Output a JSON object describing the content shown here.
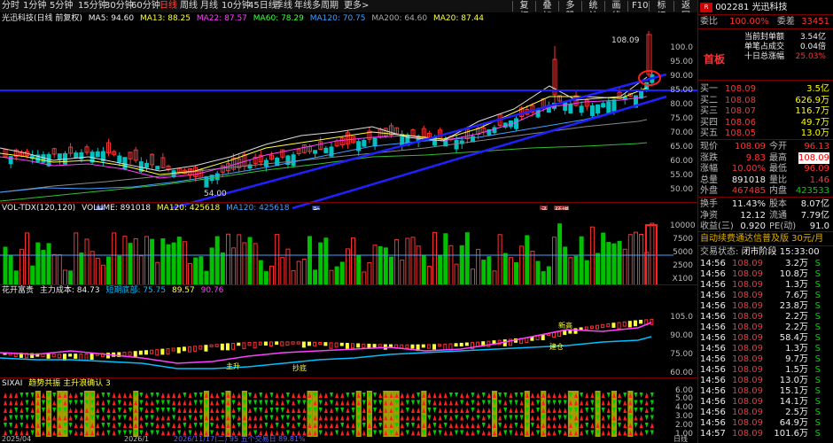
{
  "periods": [
    "分时",
    "1分钟",
    "5分钟",
    "15分钟",
    "30分钟",
    "60分钟",
    "日线",
    "周线",
    "月线",
    "10分钟",
    "45日线",
    "季线",
    "年线",
    "多周期",
    "更多>"
  ],
  "active_period": "日线",
  "toolbar": [
    "复权",
    "叠加",
    "多股",
    "统计",
    "画线",
    "F10",
    "标记",
    "返回"
  ],
  "main_title": {
    "name": "光迅科技(日线 前复权)",
    "ma5": "MA5: 94.60",
    "ma13": "MA13: 88.25",
    "ma22": "MA22: 87.57",
    "ma60": "MA60: 78.29",
    "ma120": "MA120: 70.75",
    "ma200": "MA200: 64.60",
    "ma20": "MA20: 87.44"
  },
  "price_axis": [
    "100.0",
    "95.00",
    "90.00",
    "85.00",
    "80.00",
    "75.00",
    "70.00",
    "65.00",
    "60.00",
    "55.00",
    "50.00"
  ],
  "price_high_label": "108.09",
  "price_low_label": "54.00",
  "markers": {
    "m1": "财",
    "m2": "融",
    "m3": "承",
    "m4": "预增"
  },
  "vol_title": {
    "name": "VOL-TDX(120,120)",
    "volume": "VOLUME: 891018",
    "ma120": "MA120: 425618",
    "ma120b": "MA120: 425618"
  },
  "vol_axis": [
    "10000",
    "7500",
    "5000",
    "2500",
    "X100"
  ],
  "ind2_title": {
    "name": "花开富贵",
    "cost": "主力成本: 84.73",
    "short": "短期底部: 75.75",
    "val": "89.57",
    "val2": "90.76"
  },
  "ind2_axis": [
    "105.0",
    "90.00",
    "75.00",
    "60.00"
  ],
  "ind2_labels": {
    "a": "新高",
    "b": "主升",
    "c": "抄底",
    "d": "建仓"
  },
  "ind3_title": {
    "name": "SIXAI",
    "sub": "趋势共振 主升浪确认 3"
  },
  "ind3_axis": [
    "6.00",
    "5.00",
    "4.00",
    "3.00",
    "2.00",
    "1.00"
  ],
  "bottom_dates": {
    "d1": "2025/04",
    "d2": "2026/1",
    "d3": "2026/11/17(二)  95 五个交易日 89.81%",
    "d4": "日线"
  },
  "stock": {
    "code": "002281",
    "name": "光迅科技",
    "weibi_label": "委比",
    "weibi": "100.00%",
    "weicha_label": "委差",
    "weicha": "33451",
    "dangqian_label": "当前封单额",
    "dangqian": "3.54亿",
    "danbi_label": "单笔占成交",
    "danbi": "0.04倍",
    "shiri_label": "十日总涨幅",
    "shiri": "25.03%",
    "shouban": "首板"
  },
  "orderbook": {
    "buy": [
      {
        "label": "买一",
        "price": "108.09",
        "vol": "3.5亿"
      },
      {
        "label": "买二",
        "price": "108.08",
        "vol": "626.9万"
      },
      {
        "label": "买三",
        "price": "108.07",
        "vol": "116.7万"
      },
      {
        "label": "买四",
        "price": "108.06",
        "vol": "49.7万"
      },
      {
        "label": "买五",
        "price": "108.05",
        "vol": "13.0万"
      }
    ]
  },
  "quote": [
    {
      "l1": "现价",
      "v1": "108.09",
      "c1": "red",
      "l2": "今开",
      "v2": "96.13",
      "c2": "red"
    },
    {
      "l1": "涨跌",
      "v1": "9.83",
      "c1": "red",
      "l2": "最高",
      "v2": "108.09",
      "c2": "red"
    },
    {
      "l1": "涨幅",
      "v1": "10.00%",
      "c1": "red",
      "l2": "最低",
      "v2": "96.09",
      "c2": "red"
    },
    {
      "l1": "总量",
      "v1": "891018",
      "c1": "white",
      "l2": "量比",
      "v2": "1.46",
      "c2": "red"
    },
    {
      "l1": "外盘",
      "v1": "467485",
      "c1": "red",
      "l2": "内盘",
      "v2": "423533",
      "c2": "green"
    }
  ],
  "quote2": [
    {
      "l1": "换手",
      "v1": "11.43%",
      "l2": "股本",
      "v2": "8.07亿"
    },
    {
      "l1": "净资",
      "v1": "12.12",
      "l2": "流通",
      "v2": "7.79亿"
    },
    {
      "l1": "收益(三)",
      "v1": "0.920",
      "l2": "PE(动)",
      "v2": "91.0"
    }
  ],
  "ad_text": "自动续费通达信普及版 30元/月",
  "trade_status_label": "交易状态:",
  "trade_status": "闭市阶段 15:33:00",
  "ticks": [
    {
      "t": "14:56",
      "p": "108.09",
      "v": "3.2万",
      "d": "S"
    },
    {
      "t": "14:56",
      "p": "108.09",
      "v": "10.8万",
      "d": "S"
    },
    {
      "t": "14:56",
      "p": "108.09",
      "v": "1.3万",
      "d": "S"
    },
    {
      "t": "14:56",
      "p": "108.09",
      "v": "7.6万",
      "d": "S"
    },
    {
      "t": "14:56",
      "p": "108.09",
      "v": "23.8万",
      "d": "S"
    },
    {
      "t": "14:56",
      "p": "108.09",
      "v": "2.2万",
      "d": "S"
    },
    {
      "t": "14:56",
      "p": "108.09",
      "v": "2.2万",
      "d": "S"
    },
    {
      "t": "14:56",
      "p": "108.09",
      "v": "58.4万",
      "d": "S"
    },
    {
      "t": "14:56",
      "p": "108.09",
      "v": "1.3万",
      "d": "S"
    },
    {
      "t": "14:56",
      "p": "108.09",
      "v": "9.7万",
      "d": "S"
    },
    {
      "t": "14:56",
      "p": "108.09",
      "v": "1.5万",
      "d": "S"
    },
    {
      "t": "14:56",
      "p": "108.09",
      "v": "13.0万",
      "d": "S"
    },
    {
      "t": "14:56",
      "p": "108.09",
      "v": "15.1万",
      "d": "S"
    },
    {
      "t": "14:56",
      "p": "108.09",
      "v": "14.1万",
      "d": "S"
    },
    {
      "t": "14:56",
      "p": "108.09",
      "v": "2.5万",
      "d": "S"
    },
    {
      "t": "14:56",
      "p": "108.09",
      "v": "64.9万",
      "d": "S"
    },
    {
      "t": "14:57",
      "p": "108.09",
      "v": "101.6万",
      "d": "S"
    }
  ]
}
